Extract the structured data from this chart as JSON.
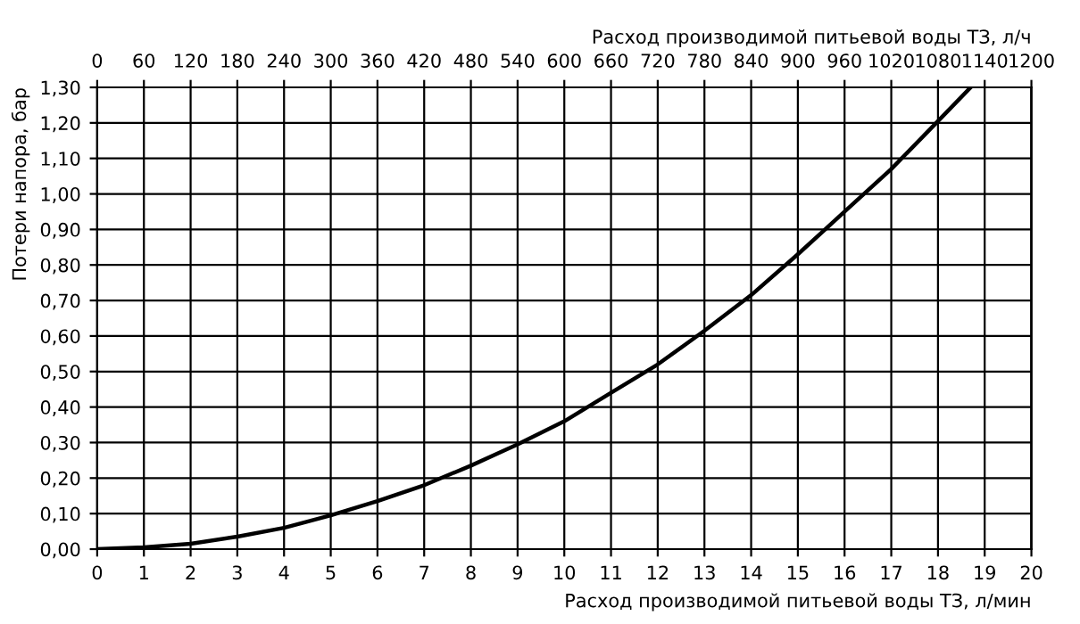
{
  "chart_data": {
    "type": "line",
    "xlabel": "Расход производимой питьевой воды ТЗ, л/мин",
    "x2label": "Расход производимой питьевой воды ТЗ, л/ч",
    "ylabel": "Потери напора, бар",
    "x": [
      0,
      1,
      2,
      3,
      4,
      5,
      6,
      7,
      8,
      9,
      10,
      11,
      12,
      13,
      14,
      15,
      16,
      17,
      18,
      18.7
    ],
    "series": [
      {
        "color": "#000000",
        "values": [
          0,
          0.005,
          0.015,
          0.035,
          0.06,
          0.095,
          0.135,
          0.18,
          0.235,
          0.295,
          0.36,
          0.44,
          0.52,
          0.615,
          0.715,
          0.83,
          0.95,
          1.07,
          1.205,
          1.3
        ]
      }
    ],
    "xlim": [
      0,
      20
    ],
    "xticks": [
      0,
      1,
      2,
      3,
      4,
      5,
      6,
      7,
      8,
      9,
      10,
      11,
      12,
      13,
      14,
      15,
      16,
      17,
      18,
      19,
      20
    ],
    "x2lim": [
      0,
      1200
    ],
    "x2ticks": [
      0,
      60,
      120,
      180,
      240,
      300,
      360,
      420,
      480,
      540,
      600,
      660,
      720,
      780,
      840,
      900,
      960,
      1020,
      1080,
      1140,
      1200
    ],
    "ylim": [
      0,
      1.3
    ],
    "yticks": [
      {
        "value": 0,
        "label": "0,00"
      },
      {
        "value": 0.1,
        "label": "0,10"
      },
      {
        "value": 0.2,
        "label": "0,20"
      },
      {
        "value": 0.3,
        "label": "0,30"
      },
      {
        "value": 0.4,
        "label": "0,40"
      },
      {
        "value": 0.5,
        "label": "0,50"
      },
      {
        "value": 0.6,
        "label": "0,60"
      },
      {
        "value": 0.7,
        "label": "0,70"
      },
      {
        "value": 0.8,
        "label": "0,80"
      },
      {
        "value": 0.9,
        "label": "0,90"
      },
      {
        "value": 1.0,
        "label": "1,00"
      },
      {
        "value": 1.1,
        "label": "1,10"
      },
      {
        "value": 1.2,
        "label": "1,20"
      },
      {
        "value": 1.3,
        "label": "1,30"
      }
    ],
    "grid": true,
    "line_style": "solid",
    "marker": "none",
    "legend": false
  }
}
